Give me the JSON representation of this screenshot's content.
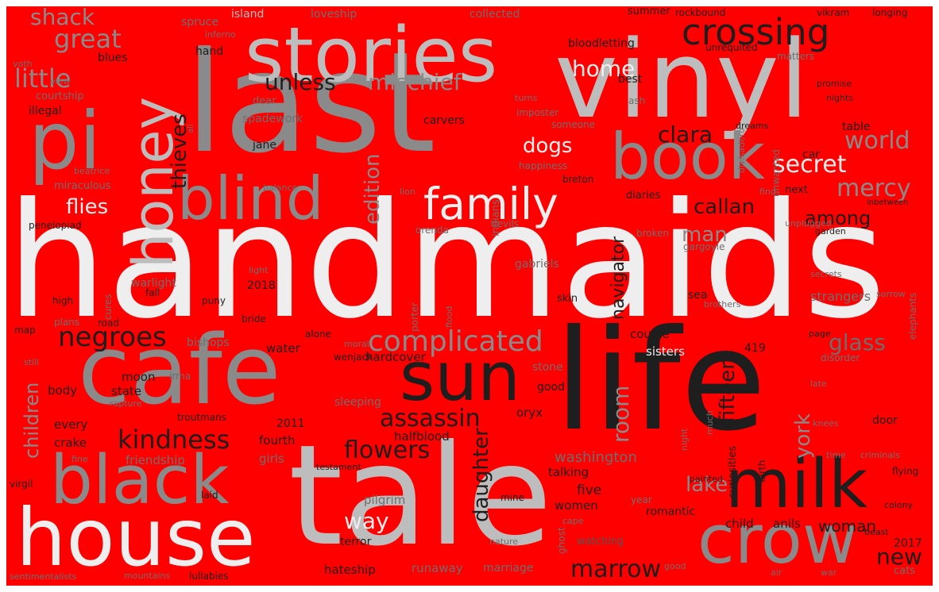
{
  "background_color": "#ff0000",
  "palette": {
    "white": "#eeeeee",
    "light": "#bdbdbd",
    "mid": "#8a8a8a",
    "dark": "#6e6e6e",
    "darker": "#555555",
    "black": "#1e1e1e"
  },
  "words": [
    {
      "text": "handmaids",
      "color": "white",
      "size": 200
    },
    {
      "text": "last",
      "color": "mid",
      "size": 175
    },
    {
      "text": "vinyl",
      "color": "light",
      "size": 135
    },
    {
      "text": "life",
      "color": "black",
      "size": 175
    },
    {
      "text": "tale",
      "color": "light",
      "size": 175
    },
    {
      "text": "cafe",
      "color": "mid",
      "size": 120
    },
    {
      "text": "house",
      "color": "white",
      "size": 100
    },
    {
      "text": "stories",
      "color": "light",
      "size": 95
    },
    {
      "text": "pi",
      "color": "mid",
      "size": 100
    },
    {
      "text": "book",
      "color": "mid",
      "size": 80
    },
    {
      "text": "black",
      "color": "mid",
      "size": 85
    },
    {
      "text": "blind",
      "color": "mid",
      "size": 75
    },
    {
      "text": "sun",
      "color": "black",
      "size": 85
    },
    {
      "text": "milk",
      "color": "black",
      "size": 85
    },
    {
      "text": "crow",
      "color": "mid",
      "size": 85
    },
    {
      "text": "honey",
      "color": "light",
      "size": 70
    },
    {
      "text": "family",
      "color": "white",
      "size": 55
    },
    {
      "text": "crossing",
      "color": "black",
      "size": 45
    },
    {
      "text": "complicated",
      "color": "mid",
      "size": 36
    },
    {
      "text": "negroes",
      "color": "black",
      "size": 34
    },
    {
      "text": "kindness",
      "color": "black",
      "size": 32
    },
    {
      "text": "assassin",
      "color": "black",
      "size": 30
    },
    {
      "text": "flowers",
      "color": "black",
      "size": 30
    },
    {
      "text": "marrow",
      "color": "black",
      "size": 30
    },
    {
      "text": "secret",
      "color": "white",
      "size": 30
    },
    {
      "text": "world",
      "color": "mid",
      "size": 30
    },
    {
      "text": "mercy",
      "color": "mid",
      "size": 30
    },
    {
      "text": "great",
      "color": "mid",
      "size": 32
    },
    {
      "text": "little",
      "color": "mid",
      "size": 32
    },
    {
      "text": "unless",
      "color": "black",
      "size": 28
    },
    {
      "text": "mischief",
      "color": "mid",
      "size": 28
    },
    {
      "text": "home",
      "color": "white",
      "size": 28
    },
    {
      "text": "clara",
      "color": "black",
      "size": 28
    },
    {
      "text": "dogs",
      "color": "white",
      "size": 26
    },
    {
      "text": "flies",
      "color": "white",
      "size": 26
    },
    {
      "text": "callan",
      "color": "black",
      "size": 26
    },
    {
      "text": "man",
      "color": "mid",
      "size": 26
    },
    {
      "text": "among",
      "color": "black",
      "size": 24
    },
    {
      "text": "glass",
      "color": "dark",
      "size": 28
    },
    {
      "text": "way",
      "color": "white",
      "size": 28
    },
    {
      "text": "lake",
      "color": "mid",
      "size": 26
    },
    {
      "text": "new",
      "color": "black",
      "size": 28
    },
    {
      "text": "woman",
      "color": "black",
      "size": 20
    },
    {
      "text": "shack",
      "color": "mid",
      "size": 28
    },
    {
      "text": "thieves",
      "color": "black",
      "size": 26
    },
    {
      "text": "edition",
      "color": "mid",
      "size": 26
    },
    {
      "text": "room",
      "color": "mid",
      "size": 28
    },
    {
      "text": "daughter",
      "color": "black",
      "size": 26
    },
    {
      "text": "navigator",
      "color": "black",
      "size": 22
    },
    {
      "text": "fifteen",
      "color": "black",
      "size": 26
    },
    {
      "text": "york",
      "color": "mid",
      "size": 26
    },
    {
      "text": "children",
      "color": "mid",
      "size": 24
    },
    {
      "text": "washington",
      "color": "dark",
      "size": 18
    },
    {
      "text": "friendship",
      "color": "dark",
      "size": 15
    },
    {
      "text": "hardcover",
      "color": "black",
      "size": 15
    },
    {
      "text": "halfblood",
      "color": "black",
      "size": 15
    },
    {
      "text": "pilgrim",
      "color": "dark",
      "size": 15
    },
    {
      "text": "talking",
      "color": "black",
      "size": 15
    },
    {
      "text": "five",
      "color": "black",
      "size": 17
    },
    {
      "text": "women",
      "color": "black",
      "size": 15
    },
    {
      "text": "romantic",
      "color": "black",
      "size": 14
    },
    {
      "text": "child",
      "color": "black",
      "size": 15
    },
    {
      "text": "anils",
      "color": "black",
      "size": 15
    },
    {
      "text": "hateship",
      "color": "black",
      "size": 15
    },
    {
      "text": "runaway",
      "color": "dark",
      "size": 15
    },
    {
      "text": "marriage",
      "color": "dark",
      "size": 14
    },
    {
      "text": "terror",
      "color": "black",
      "size": 14
    },
    {
      "text": "watching",
      "color": "darker",
      "size": 13
    },
    {
      "text": "oryx",
      "color": "black",
      "size": 15
    },
    {
      "text": "crake",
      "color": "black",
      "size": 15
    },
    {
      "text": "every",
      "color": "black",
      "size": 15
    },
    {
      "text": "body",
      "color": "black",
      "size": 15
    },
    {
      "text": "state",
      "color": "black",
      "size": 15
    },
    {
      "text": "moon",
      "color": "black",
      "size": 15
    },
    {
      "text": "fourth",
      "color": "black",
      "size": 15
    },
    {
      "text": "girls",
      "color": "dark",
      "size": 15
    },
    {
      "text": "2011",
      "color": "black",
      "size": 14
    },
    {
      "text": "sleeping",
      "color": "dark",
      "size": 14
    },
    {
      "text": "stone",
      "color": "dark",
      "size": 14
    },
    {
      "text": "good",
      "color": "black",
      "size": 14
    },
    {
      "text": "sisters",
      "color": "white",
      "size": 15
    },
    {
      "text": "couple",
      "color": "black",
      "size": 15
    },
    {
      "text": "water",
      "color": "black",
      "size": 15
    },
    {
      "text": "419",
      "color": "black",
      "size": 14
    },
    {
      "text": "wenjack",
      "color": "black",
      "size": 12
    },
    {
      "text": "strangers",
      "color": "dark",
      "size": 16
    },
    {
      "text": "2018",
      "color": "black",
      "size": 14
    },
    {
      "text": "bishops",
      "color": "dark",
      "size": 14
    },
    {
      "text": "warlight",
      "color": "dark",
      "size": 14
    },
    {
      "text": "gabriels",
      "color": "dark",
      "size": 14
    },
    {
      "text": "spadework",
      "color": "dark",
      "size": 14
    },
    {
      "text": "carvers",
      "color": "black",
      "size": 14
    },
    {
      "text": "jane",
      "color": "black",
      "size": 14
    },
    {
      "text": "illegal",
      "color": "black",
      "size": 14
    },
    {
      "text": "courtship",
      "color": "dark",
      "size": 13
    },
    {
      "text": "blues",
      "color": "black",
      "size": 14
    },
    {
      "text": "hand",
      "color": "black",
      "size": 14
    },
    {
      "text": "island",
      "color": "light",
      "size": 14
    },
    {
      "text": "spruce",
      "color": "dark",
      "size": 14
    },
    {
      "text": "loveship",
      "color": "dark",
      "size": 14
    },
    {
      "text": "collected",
      "color": "dark",
      "size": 14
    },
    {
      "text": "summer",
      "color": "black",
      "size": 13
    },
    {
      "text": "rockbound",
      "color": "black",
      "size": 12
    },
    {
      "text": "vikram",
      "color": "black",
      "size": 12
    },
    {
      "text": "longing",
      "color": "black",
      "size": 12
    },
    {
      "text": "bloodletting",
      "color": "black",
      "size": 14
    },
    {
      "text": "unrequited",
      "color": "black",
      "size": 12
    },
    {
      "text": "matters",
      "color": "dark",
      "size": 12
    },
    {
      "text": "best",
      "color": "black",
      "size": 14
    },
    {
      "text": "promise",
      "color": "black",
      "size": 11
    },
    {
      "text": "nights",
      "color": "black",
      "size": 11
    },
    {
      "text": "dear",
      "color": "dark",
      "size": 13
    },
    {
      "text": "ash",
      "color": "dark",
      "size": 12
    },
    {
      "text": "turns",
      "color": "dark",
      "size": 11
    },
    {
      "text": "imposter",
      "color": "dark",
      "size": 12
    },
    {
      "text": "someone",
      "color": "dark",
      "size": 12
    },
    {
      "text": "dreams",
      "color": "black",
      "size": 11
    },
    {
      "text": "table",
      "color": "black",
      "size": 14
    },
    {
      "text": "car",
      "color": "black",
      "size": 14
    },
    {
      "text": "happiness",
      "color": "dark",
      "size": 12
    },
    {
      "text": "breton",
      "color": "black",
      "size": 12
    },
    {
      "text": "lion",
      "color": "dark",
      "size": 11
    },
    {
      "text": "balance",
      "color": "dark",
      "size": 11
    },
    {
      "text": "diaries",
      "color": "black",
      "size": 13
    },
    {
      "text": "next",
      "color": "black",
      "size": 13
    },
    {
      "text": "inbetween",
      "color": "black",
      "size": 10
    },
    {
      "text": "find",
      "color": "dark",
      "size": 11
    },
    {
      "text": "unplugged",
      "color": "dark",
      "size": 11
    },
    {
      "text": "garden",
      "color": "black",
      "size": 11
    },
    {
      "text": "broken",
      "color": "dark",
      "size": 12
    },
    {
      "text": "devils",
      "color": "dark",
      "size": 12
    },
    {
      "text": "orenda",
      "color": "dark",
      "size": 12
    },
    {
      "text": "gargoyle",
      "color": "dark",
      "size": 12
    },
    {
      "text": "light",
      "color": "dark",
      "size": 11
    },
    {
      "text": "beatrice",
      "color": "dark",
      "size": 11
    },
    {
      "text": "miraculous",
      "color": "dark",
      "size": 13
    },
    {
      "text": "penelopiad",
      "color": "black",
      "size": 12
    },
    {
      "text": "voth",
      "color": "dark",
      "size": 11
    },
    {
      "text": "view",
      "color": "dark",
      "size": 11
    },
    {
      "text": "fall",
      "color": "black",
      "size": 12
    },
    {
      "text": "high",
      "color": "black",
      "size": 12
    },
    {
      "text": "map",
      "color": "black",
      "size": 12
    },
    {
      "text": "plans",
      "color": "dark",
      "size": 12
    },
    {
      "text": "road",
      "color": "black",
      "size": 12
    },
    {
      "text": "bride",
      "color": "black",
      "size": 12
    },
    {
      "text": "puny",
      "color": "black",
      "size": 12
    },
    {
      "text": "alone",
      "color": "black",
      "size": 12
    },
    {
      "text": "moral",
      "color": "dark",
      "size": 11
    },
    {
      "text": "sea",
      "color": "black",
      "size": 14
    },
    {
      "text": "skin",
      "color": "black",
      "size": 13
    },
    {
      "text": "secrets",
      "color": "dark",
      "size": 11
    },
    {
      "text": "sorrow",
      "color": "dark",
      "size": 11
    },
    {
      "text": "brothers",
      "color": "dark",
      "size": 11
    },
    {
      "text": "page",
      "color": "black",
      "size": 11
    },
    {
      "text": "disorder",
      "color": "dark",
      "size": 12
    },
    {
      "text": "irma",
      "color": "dark",
      "size": 12
    },
    {
      "text": "rapture",
      "color": "dark",
      "size": 11
    },
    {
      "text": "troutmans",
      "color": "black",
      "size": 12
    },
    {
      "text": "late",
      "color": "dark",
      "size": 11
    },
    {
      "text": "door",
      "color": "black",
      "size": 14
    },
    {
      "text": "knees",
      "color": "dark",
      "size": 11
    },
    {
      "text": "time",
      "color": "dark",
      "size": 11
    },
    {
      "text": "criminals",
      "color": "dark",
      "size": 11
    },
    {
      "text": "flying",
      "color": "black",
      "size": 12
    },
    {
      "text": "testament",
      "color": "black",
      "size": 11
    },
    {
      "text": "painted",
      "color": "black",
      "size": 11
    },
    {
      "text": "mine",
      "color": "black",
      "size": 12
    },
    {
      "text": "year",
      "color": "dark",
      "size": 12
    },
    {
      "text": "colony",
      "color": "black",
      "size": 11
    },
    {
      "text": "cape",
      "color": "dark",
      "size": 11
    },
    {
      "text": "nature",
      "color": "dark",
      "size": 11
    },
    {
      "text": "beast",
      "color": "black",
      "size": 11
    },
    {
      "text": "2017",
      "color": "black",
      "size": 14
    },
    {
      "text": "cats",
      "color": "dark",
      "size": 13
    },
    {
      "text": "good",
      "color": "dark",
      "size": 11
    },
    {
      "text": "air",
      "color": "dark",
      "size": 11
    },
    {
      "text": "war",
      "color": "dark",
      "size": 11
    },
    {
      "text": "mountains",
      "color": "dark",
      "size": 11
    },
    {
      "text": "lullabies",
      "color": "black",
      "size": 12
    },
    {
      "text": "sentimentalists",
      "color": "dark",
      "size": 11
    },
    {
      "text": "virgil",
      "color": "black",
      "size": 12
    },
    {
      "text": "laid",
      "color": "black",
      "size": 12
    },
    {
      "text": "fine",
      "color": "dark",
      "size": 11
    },
    {
      "text": "still",
      "color": "dark",
      "size": 11
    },
    {
      "text": "sunburnt",
      "color": "dark",
      "size": 10
    },
    {
      "text": "inferno",
      "color": "dark",
      "size": 11
    },
    {
      "text": "porter",
      "color": "dark",
      "size": 12
    },
    {
      "text": "flood",
      "color": "dark",
      "size": 11
    },
    {
      "text": "cures",
      "color": "dark",
      "size": 12
    },
    {
      "text": "indians",
      "color": "dark",
      "size": 13
    },
    {
      "text": "divisadero",
      "color": "dark",
      "size": 11
    },
    {
      "text": "unwanted",
      "color": "dark",
      "size": 12
    },
    {
      "text": "curiosities",
      "color": "black",
      "size": 13
    },
    {
      "text": "birth",
      "color": "black",
      "size": 12
    },
    {
      "text": "night",
      "color": "dark",
      "size": 11
    },
    {
      "text": "much",
      "color": "dark",
      "size": 11
    },
    {
      "text": "ghost",
      "color": "dark",
      "size": 12
    },
    {
      "text": "elephants",
      "color": "dark",
      "size": 12
    },
    {
      "text": "all",
      "color": "dark",
      "size": 10
    },
    {
      "text": "fall",
      "color": "dark",
      "size": 11
    }
  ]
}
